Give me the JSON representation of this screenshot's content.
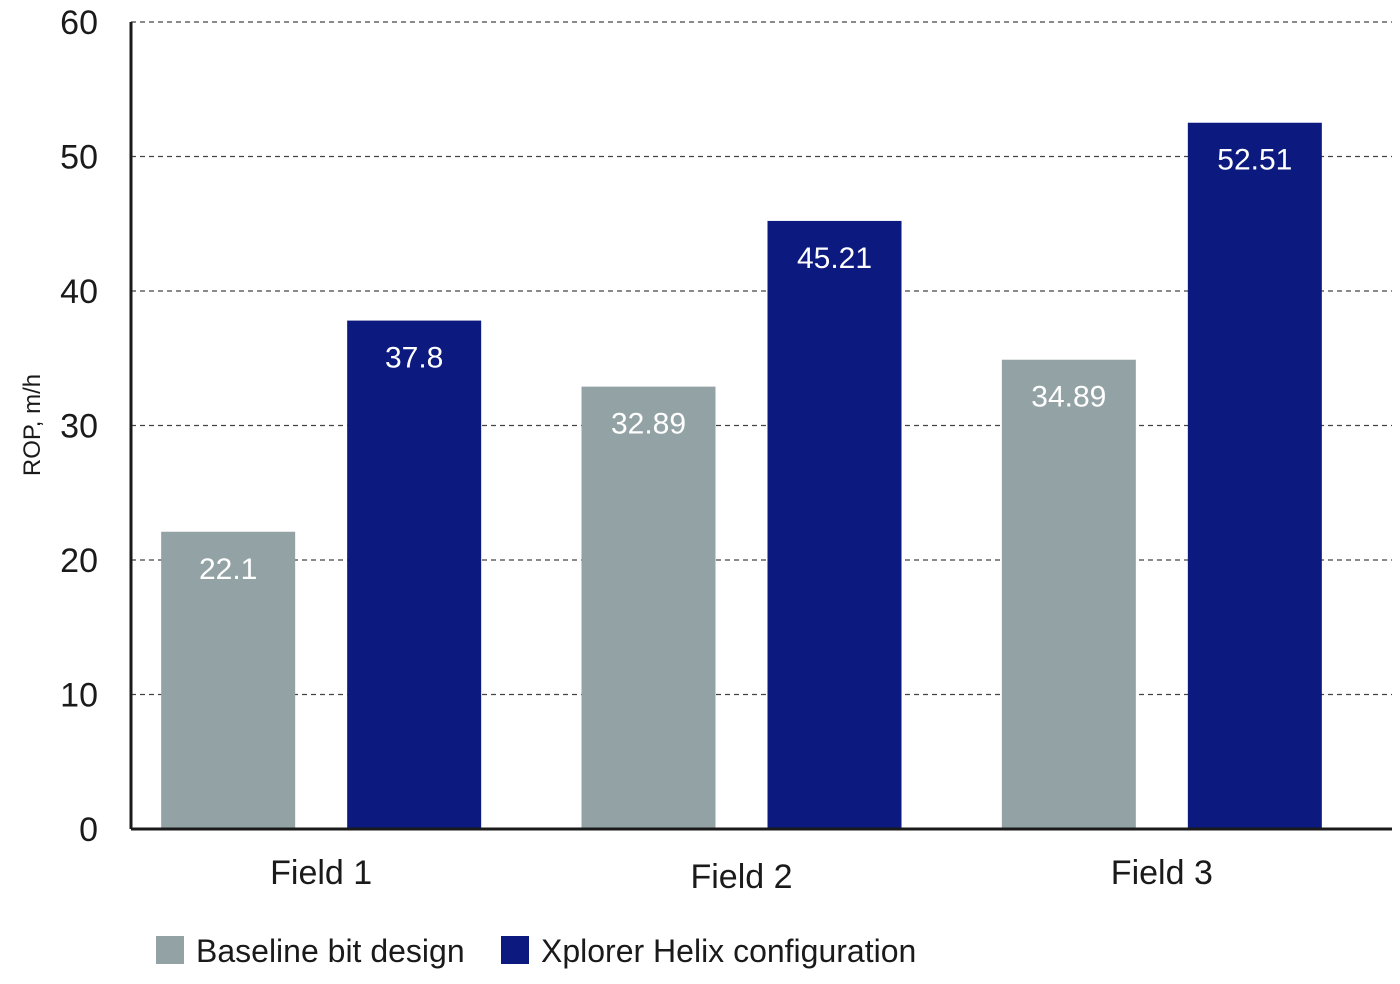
{
  "chart_data": {
    "type": "bar",
    "title": "",
    "xlabel": "",
    "ylabel": "ROP, m/h",
    "ylim": [
      0,
      60
    ],
    "yticks": [
      0,
      10,
      20,
      30,
      40,
      50,
      60
    ],
    "grid": true,
    "legend_position": "bottom-left",
    "categories": [
      "Field 1",
      "Field 2",
      "Field 3"
    ],
    "series": [
      {
        "name": "Baseline bit design",
        "color": "#93a3a5",
        "values": [
          22.1,
          32.89,
          34.89
        ],
        "labels": [
          "22.1",
          "32.89",
          "34.89"
        ]
      },
      {
        "name": "Xplorer Helix configuration",
        "color": "#0c1a80",
        "values": [
          37.8,
          45.21,
          52.51
        ],
        "labels": [
          "37.8",
          "45.21",
          "52.51"
        ]
      }
    ]
  }
}
